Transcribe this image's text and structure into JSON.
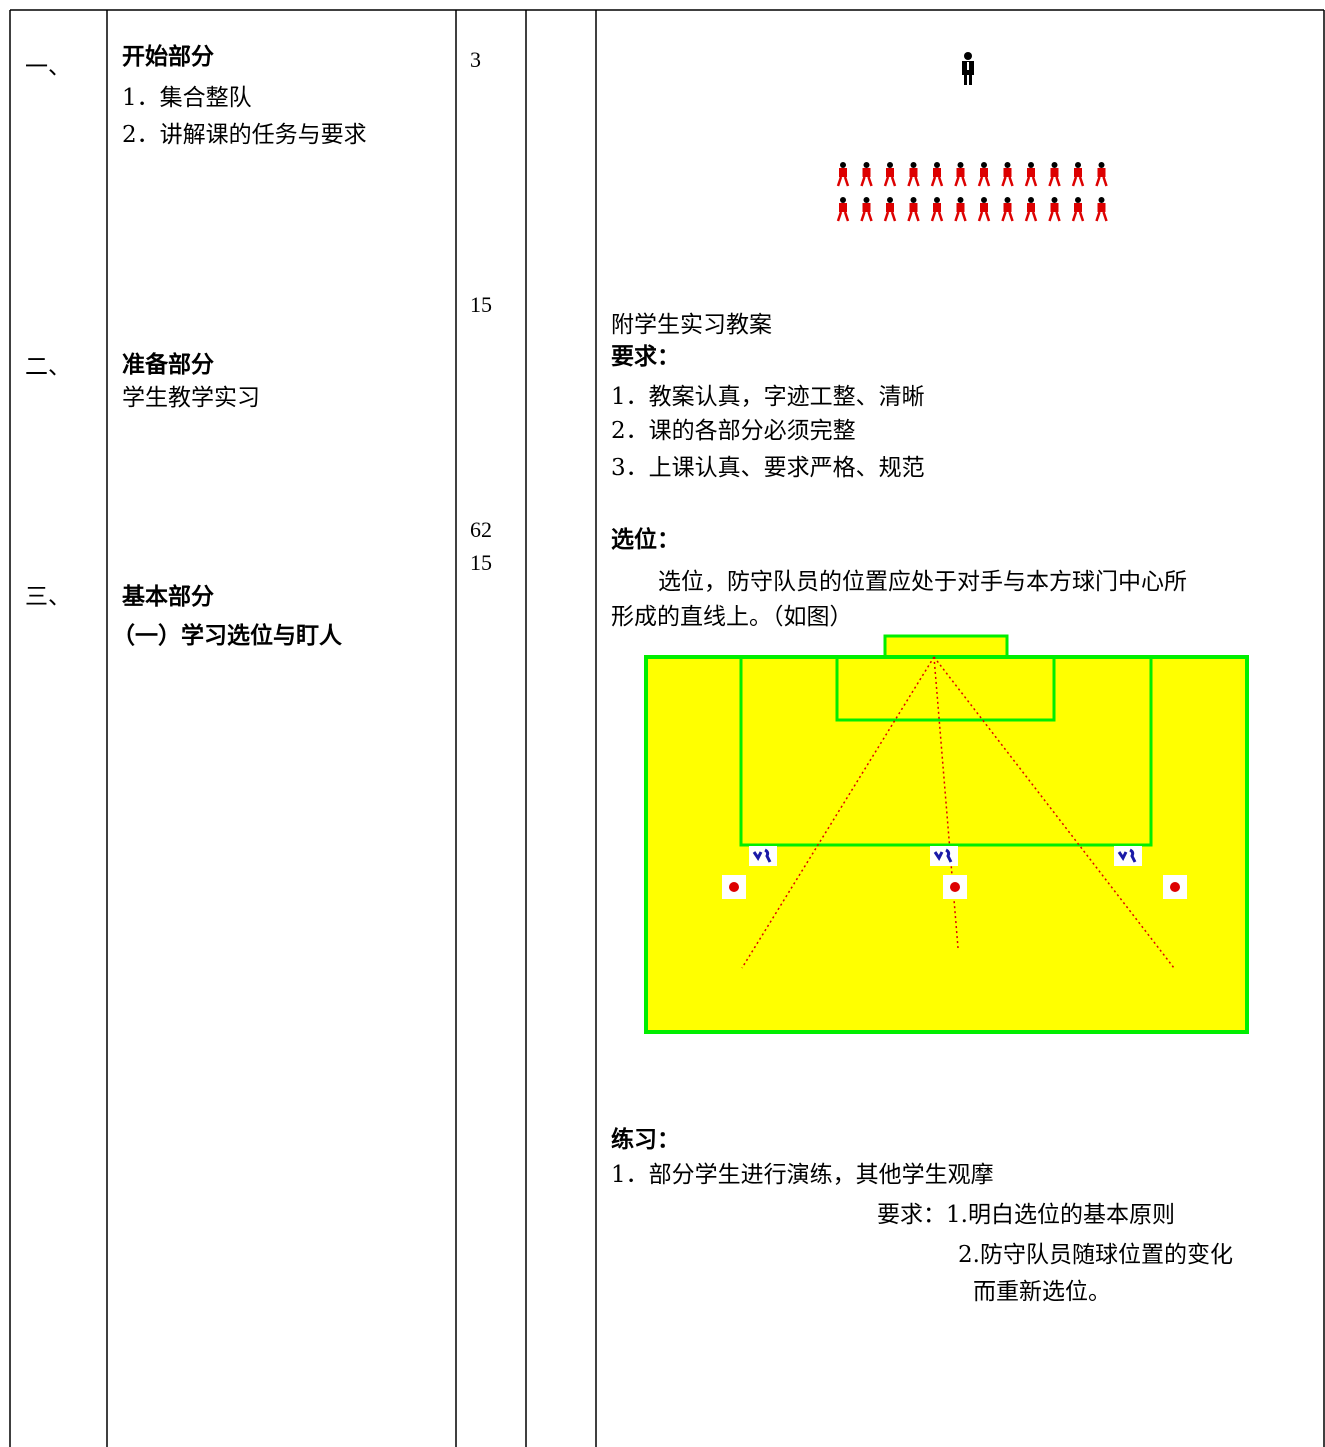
{
  "rows": [
    {
      "number": "一、",
      "heading": "开始部分",
      "items": [
        "1．集合整队",
        "2．讲解课的任务与要求"
      ],
      "times": [
        "3"
      ]
    },
    {
      "number": "二、",
      "heading": "准备部分",
      "items": [
        "学生教学实习"
      ],
      "times": [
        "15"
      ]
    },
    {
      "number": "三、",
      "heading": "基本部分",
      "subheading": "（一）学习选位与盯人",
      "times": [
        "62",
        "15"
      ]
    }
  ],
  "notes": {
    "attachment": "附学生实习教案",
    "requirements_title": "要求：",
    "requirements": [
      "1．教案认真，字迹工整、清晰",
      "2．课的各部分必须完整",
      "3．上课认真、要求严格、规范"
    ],
    "positioning_title": "选位：",
    "positioning_text": [
      "选位，防守队员的位置应处于对手与本方球门中心所",
      "形成的直线上。（如图）"
    ],
    "practice_title": "练习：",
    "practice": "1．部分学生进行演练，其他学生观摩",
    "practice_requirements": [
      "要求：1.明白选位的基本原则",
      "2.防守队员随球位置的变化",
      "而重新选位。"
    ]
  }
}
